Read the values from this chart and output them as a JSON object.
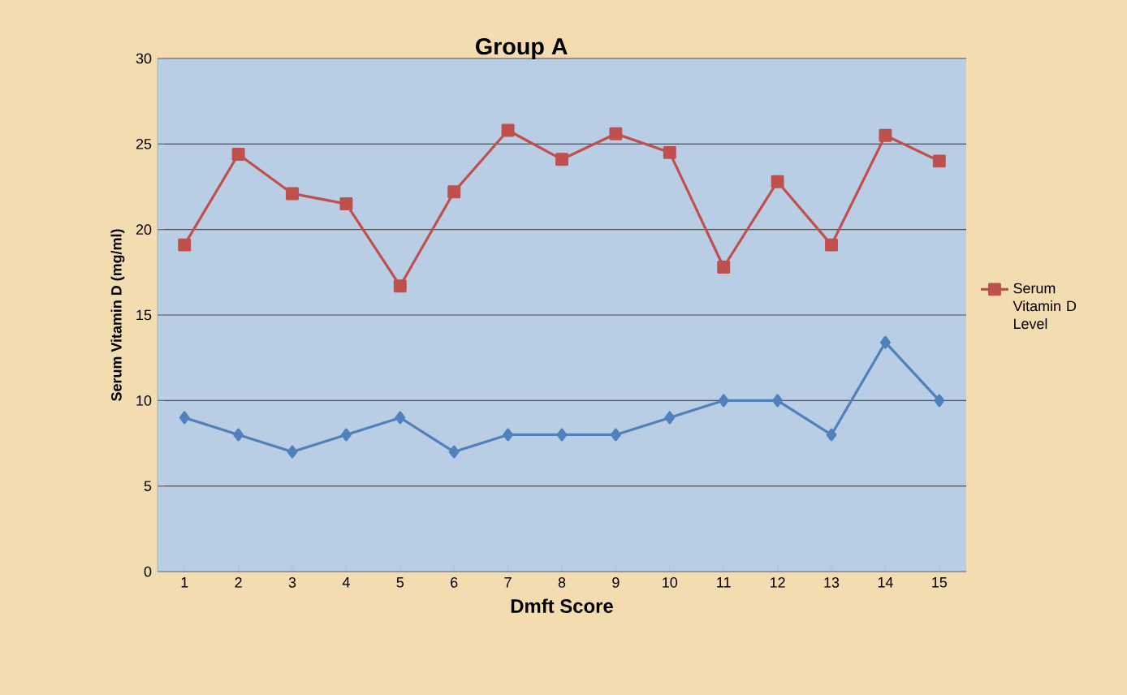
{
  "chart_data": {
    "type": "line",
    "title": "Group A",
    "xlabel": "Dmft Score",
    "ylabel": "Serum Vitamin D (mg/ml)",
    "categories": [
      "1",
      "2",
      "3",
      "4",
      "5",
      "6",
      "7",
      "8",
      "9",
      "10",
      "11",
      "12",
      "13",
      "14",
      "15"
    ],
    "series": [
      {
        "name": "Serum Vitamin D Level",
        "color": "#c0504d",
        "marker": "square",
        "values": [
          19.1,
          24.4,
          22.1,
          21.5,
          16.7,
          22.2,
          25.8,
          24.1,
          25.6,
          24.5,
          17.8,
          22.8,
          19.1,
          25.5,
          24.0
        ]
      },
      {
        "color": "#4f81bd",
        "marker": "diamond",
        "values": [
          9,
          8,
          7,
          8,
          9,
          7,
          8,
          8,
          8,
          9,
          10,
          10,
          8,
          13.4,
          10
        ]
      }
    ],
    "ylim": [
      0,
      30
    ],
    "yticks": [
      0,
      5,
      10,
      15,
      20,
      25,
      30
    ],
    "grid": "y",
    "legend": "right",
    "line_style": "solid"
  }
}
